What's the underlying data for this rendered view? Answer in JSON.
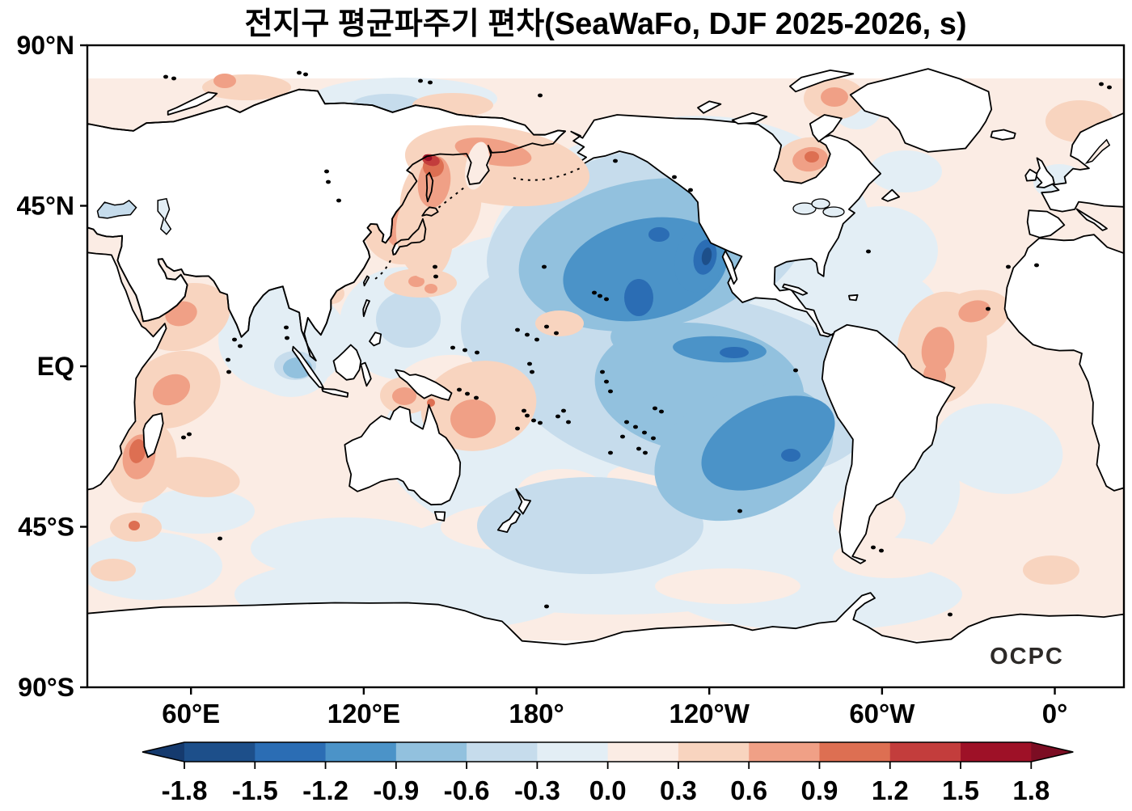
{
  "title": "전지구 평균파주기 편차(SeaWaFo, DJF 2025-2026, s)",
  "watermark": "OCPC",
  "axes": {
    "y_ticks": [
      {
        "label": "90°N",
        "lat": 90
      },
      {
        "label": "45°N",
        "lat": 45
      },
      {
        "label": "EQ",
        "lat": 0
      },
      {
        "label": "45°S",
        "lat": -45
      },
      {
        "label": "90°S",
        "lat": -90
      }
    ],
    "x_ticks": [
      {
        "label": "60°E",
        "lon": 60
      },
      {
        "label": "120°E",
        "lon": 120
      },
      {
        "label": "180°",
        "lon": 180
      },
      {
        "label": "120°W",
        "lon": 240
      },
      {
        "label": "60°W",
        "lon": 300
      },
      {
        "label": "0°",
        "lon": 360
      }
    ]
  },
  "colorbar": {
    "tick_labels": [
      "-1.8",
      "-1.5",
      "-1.2",
      "-0.9",
      "-0.6",
      "-0.3",
      "0.0",
      "0.3",
      "0.6",
      "0.9",
      "1.2",
      "1.5",
      "1.8"
    ],
    "colors": {
      "under": "#153a6e",
      "levels": [
        "#1d4f8a",
        "#2b6db4",
        "#4b93c8",
        "#92c1de",
        "#c6dcec",
        "#e3eef5",
        "#fbece4",
        "#f8d4bf",
        "#f0a086",
        "#dd6f52",
        "#c33d3c",
        "#9e1127"
      ],
      "over": "#7c0d23"
    }
  },
  "chart_data": {
    "type": "heatmap",
    "title": "전지구 평균파주기 편차(SeaWaFo, DJF 2025-2026, s)",
    "variable": "global mean wave period anomaly",
    "dataset": "SeaWaFo",
    "season": "DJF 2025-2026",
    "units": "s",
    "projection": "equirectangular, Pacific-centered, lon 24°E eastward to 24°E",
    "lat_range": [
      -90,
      90
    ],
    "contour_levels": [
      -1.8,
      -1.5,
      -1.2,
      -0.9,
      -0.6,
      -0.3,
      0.0,
      0.3,
      0.6,
      0.9,
      1.2,
      1.5,
      1.8
    ],
    "legend_position": "bottom horizontal colorbar with triangular under/over arrows",
    "grid": false,
    "features": [
      {
        "region": "central North Pacific",
        "lat": 38,
        "lon": -168,
        "anomaly": -1.0
      },
      {
        "region": "NE Pacific off Baja California",
        "lat": 33,
        "lon": -125,
        "anomaly": -1.3
      },
      {
        "region": "equatorial central Pacific",
        "lat": 5,
        "lon": -140,
        "anomaly": -0.95
      },
      {
        "region": "southeast Pacific",
        "lat": -25,
        "lon": -110,
        "anomaly": -1.0
      },
      {
        "region": "Sea of Okhotsk / Magadan coast",
        "lat": 59,
        "lon": 147,
        "anomaly": 1.6
      },
      {
        "region": "Sea of Japan",
        "lat": 40,
        "lon": 133,
        "anomaly": 0.7
      },
      {
        "region": "Arabian Sea",
        "lat": 15,
        "lon": 62,
        "anomaly": 0.7
      },
      {
        "region": "west Indian Ocean near Madagascar",
        "lat": -22,
        "lon": 42,
        "anomaly": 1.0
      },
      {
        "region": "Coral Sea / Solomon Sea",
        "lat": -15,
        "lon": 160,
        "anomaly": 0.8
      },
      {
        "region": "tropical Atlantic off NW Africa",
        "lat": 8,
        "lon": -25,
        "anomaly": 0.8
      },
      {
        "region": "Hudson Bay",
        "lat": 58,
        "lon": -85,
        "anomaly": 0.8
      },
      {
        "region": "most remaining oceans",
        "lat": null,
        "lon": null,
        "anomaly": 0.15
      }
    ],
    "source_label": "OCPC"
  }
}
